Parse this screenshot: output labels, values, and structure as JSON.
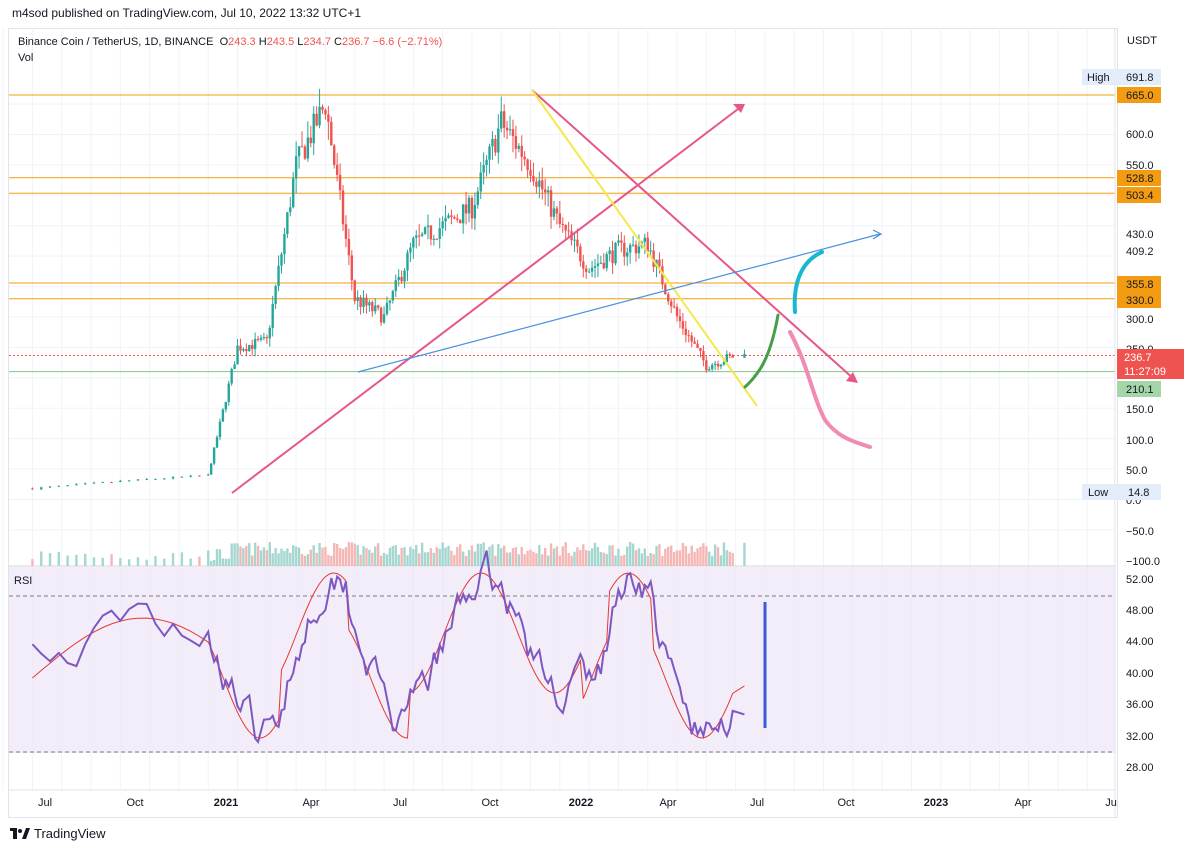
{
  "header": {
    "published_text": "m4sod published on TradingView.com, Jul 10, 2022 13:32 UTC+1"
  },
  "legend": {
    "symbol": "Binance Coin / TetherUS, 1D, BINANCE",
    "o_key": "O",
    "o_val": "243.3",
    "h_key": "H",
    "h_val": "243.5",
    "l_key": "L",
    "l_val": "234.7",
    "c_key": "C",
    "c_val": "236.7",
    "change": "−6.6 (−2.71%)",
    "vol_label": "Vol",
    "rsi_label": "RSI"
  },
  "price_axis": {
    "currency": "USDT",
    "ticks": [
      "691.8",
      "665.0",
      "600.0",
      "550.0",
      "528.8",
      "503.4",
      "430.0",
      "409.2",
      "355.8",
      "330.0",
      "300.0",
      "250.0",
      "236.7",
      "210.1",
      "150.0",
      "100.0",
      "50.0",
      "0.0",
      "−50.0",
      "−100.0"
    ],
    "high_label": "High",
    "high_value": "691.8",
    "low_label": "Low",
    "low_value": "14.8",
    "countdown": "11:27:09",
    "orange_levels": [
      "665.0",
      "528.8",
      "503.4",
      "355.8",
      "330.0"
    ],
    "current_price": "236.7",
    "green_level": "210.1"
  },
  "rsi_axis": {
    "ticks": [
      "52.00",
      "48.00",
      "44.00",
      "40.00",
      "36.00",
      "32.00",
      "28.00"
    ]
  },
  "time_axis": {
    "ticks": [
      {
        "label": "Jul",
        "bold": false
      },
      {
        "label": "Oct",
        "bold": false
      },
      {
        "label": "2021",
        "bold": true
      },
      {
        "label": "Apr",
        "bold": false
      },
      {
        "label": "Jul",
        "bold": false
      },
      {
        "label": "Oct",
        "bold": false
      },
      {
        "label": "2022",
        "bold": true
      },
      {
        "label": "Apr",
        "bold": false
      },
      {
        "label": "Jul",
        "bold": false
      },
      {
        "label": "Oct",
        "bold": false
      },
      {
        "label": "2023",
        "bold": true
      },
      {
        "label": "Apr",
        "bold": false
      },
      {
        "label": "Ju",
        "bold": false
      }
    ]
  },
  "footer": {
    "brand": "TradingView"
  },
  "colors": {
    "up": "#26a69a",
    "down": "#ef5350",
    "orange_level": "#f39c12",
    "rsi_line": "#7e57c2",
    "rsi_ma": "#e53935",
    "rsi_bg": "#ede7f6",
    "trend_pink": "#e8578a",
    "trend_yellow": "#f5e84b",
    "trend_blue": "#4a90e2",
    "arrow_cyan": "#18b8d0",
    "arrow_green": "#43a047",
    "arrow_pink_light": "#f08bb4",
    "rsi_marker": "#3d5bd9"
  },
  "chart_data": {
    "type": "candlestick",
    "symbol": "BNB/USDT",
    "timeframe": "1D",
    "exchange": "BINANCE",
    "last_ohlc": {
      "open": 243.3,
      "high": 243.5,
      "low": 234.7,
      "close": 236.7
    },
    "change": -6.6,
    "change_pct": -2.71,
    "all_time_high": 691.8,
    "visible_low": 14.8,
    "horizontal_levels": [
      665.0,
      528.8,
      503.4,
      355.8,
      330.0
    ],
    "support_level": 210.1,
    "approx_close_path": [
      {
        "date": "2020-07",
        "close": 18
      },
      {
        "date": "2020-10",
        "close": 30
      },
      {
        "date": "2021-01",
        "close": 40
      },
      {
        "date": "2021-02",
        "close": 250
      },
      {
        "date": "2021-03",
        "close": 260
      },
      {
        "date": "2021-04",
        "close": 550
      },
      {
        "date": "2021-05",
        "close": 650
      },
      {
        "date": "2021-06",
        "close": 330
      },
      {
        "date": "2021-07",
        "close": 300
      },
      {
        "date": "2021-08",
        "close": 420
      },
      {
        "date": "2021-09",
        "close": 450
      },
      {
        "date": "2021-10",
        "close": 480
      },
      {
        "date": "2021-11",
        "close": 620
      },
      {
        "date": "2021-12",
        "close": 550
      },
      {
        "date": "2022-01",
        "close": 450
      },
      {
        "date": "2022-02",
        "close": 380
      },
      {
        "date": "2022-03",
        "close": 410
      },
      {
        "date": "2022-04",
        "close": 420
      },
      {
        "date": "2022-05",
        "close": 300
      },
      {
        "date": "2022-06",
        "close": 220
      },
      {
        "date": "2022-07",
        "close": 236.7
      }
    ],
    "rsi_ticks": [
      52,
      48,
      44,
      40,
      36,
      32,
      28
    ],
    "rsi_levels": [
      50,
      30
    ]
  }
}
